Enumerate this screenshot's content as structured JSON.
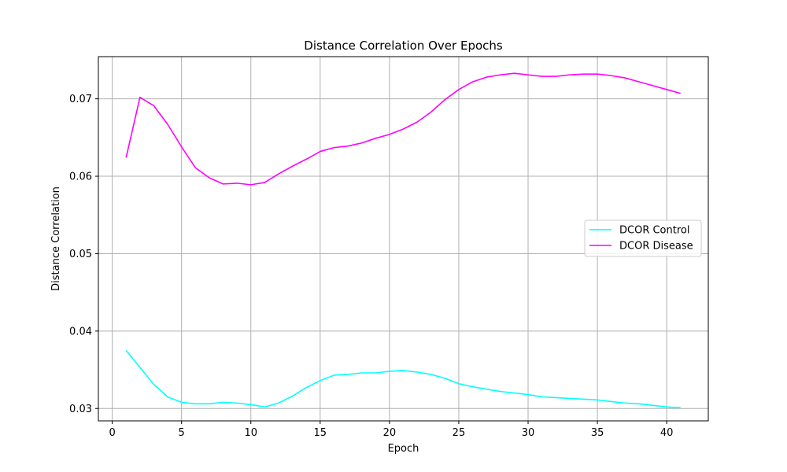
{
  "chart_data": {
    "type": "line",
    "title": "Distance Correlation Over Epochs",
    "xlabel": "Epoch",
    "ylabel": "Distance Correlation",
    "xlim": [
      -1.0,
      43.0
    ],
    "ylim": [
      0.0284,
      0.07545
    ],
    "x_ticks": [
      0,
      5,
      10,
      15,
      20,
      25,
      30,
      35,
      40
    ],
    "y_ticks": [
      0.03,
      0.04,
      0.05,
      0.06,
      0.07
    ],
    "y_tick_labels": [
      "0.03",
      "0.04",
      "0.05",
      "0.06",
      "0.07"
    ],
    "grid": true,
    "legend_position": "center-right",
    "x": [
      1,
      2,
      3,
      4,
      5,
      6,
      7,
      8,
      9,
      10,
      11,
      12,
      13,
      14,
      15,
      16,
      17,
      18,
      19,
      20,
      21,
      22,
      23,
      24,
      25,
      26,
      27,
      28,
      29,
      30,
      31,
      32,
      33,
      34,
      35,
      36,
      37,
      38,
      39,
      40,
      41
    ],
    "series": [
      {
        "name": "DCOR Control",
        "color": "#00ffff",
        "values": [
          0.0375,
          0.0353,
          0.0331,
          0.0315,
          0.0308,
          0.0306,
          0.0306,
          0.0308,
          0.0307,
          0.0305,
          0.0302,
          0.0307,
          0.0316,
          0.0327,
          0.0336,
          0.0343,
          0.0344,
          0.0346,
          0.0346,
          0.0348,
          0.0349,
          0.0347,
          0.0344,
          0.0339,
          0.0332,
          0.0328,
          0.0325,
          0.0322,
          0.032,
          0.0318,
          0.0315,
          0.0314,
          0.0313,
          0.0312,
          0.0311,
          0.0309,
          0.0307,
          0.0306,
          0.0304,
          0.0302,
          0.0301
        ]
      },
      {
        "name": "DCOR Disease",
        "color": "#ff00ff",
        "values": [
          0.0624,
          0.0702,
          0.0691,
          0.0667,
          0.0638,
          0.0611,
          0.0598,
          0.059,
          0.0591,
          0.0589,
          0.0592,
          0.0603,
          0.0613,
          0.0622,
          0.0632,
          0.0637,
          0.0639,
          0.0643,
          0.0649,
          0.0654,
          0.0661,
          0.067,
          0.0683,
          0.0699,
          0.0712,
          0.0722,
          0.0728,
          0.0731,
          0.0733,
          0.0731,
          0.0729,
          0.0729,
          0.0731,
          0.0732,
          0.0732,
          0.073,
          0.0727,
          0.0722,
          0.0717,
          0.0712,
          0.0707
        ]
      }
    ]
  }
}
